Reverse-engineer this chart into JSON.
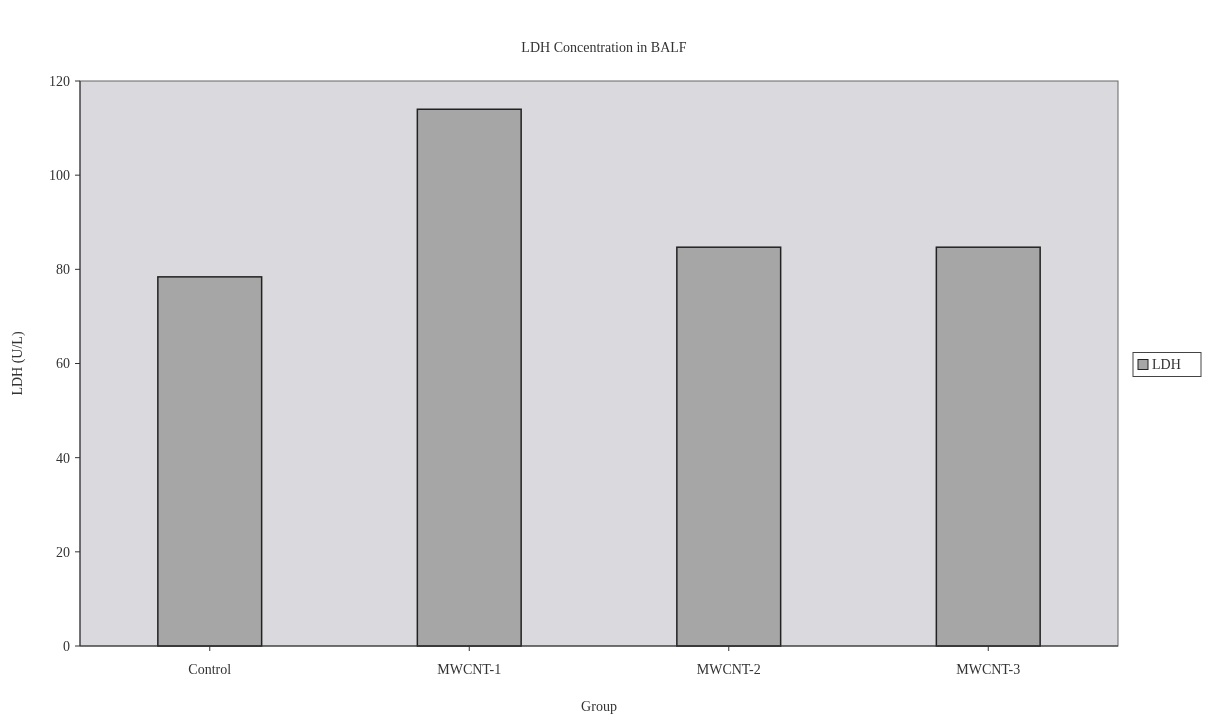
{
  "chart_data": {
    "type": "bar",
    "title": "LDH Concentration in BALF",
    "xlabel": "Group",
    "ylabel": "LDH (U/L)",
    "categories": [
      "Control",
      "MWCNT-1",
      "MWCNT-2",
      "MWCNT-3"
    ],
    "series": [
      {
        "name": "LDH",
        "color": "#a6a6a6",
        "values": [
          78.4,
          114,
          84.7,
          84.7
        ]
      }
    ],
    "ylim": [
      0,
      120
    ],
    "yticks": [
      0,
      20,
      40,
      60,
      80,
      100,
      120
    ],
    "grid": false,
    "legend": "right"
  }
}
